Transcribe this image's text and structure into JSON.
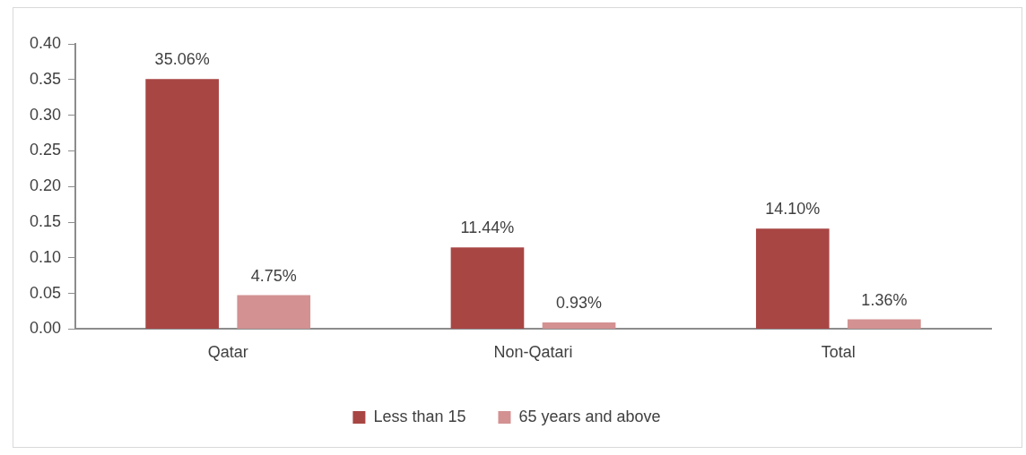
{
  "chart_data": {
    "type": "bar",
    "categories": [
      "Qatar",
      "Non-Qatari",
      "Total"
    ],
    "series": [
      {
        "name": "Less than 15",
        "color": "#a84644",
        "values": [
          0.3506,
          0.1144,
          0.141
        ],
        "value_labels": [
          "35.06%",
          "11.44%",
          "14.10%"
        ]
      },
      {
        "name": "65 years and above",
        "color": "#d39191",
        "values": [
          0.0475,
          0.0093,
          0.0136
        ],
        "value_labels": [
          "4.75%",
          "0.93%",
          "1.36%"
        ]
      }
    ],
    "ylim": [
      0,
      0.4
    ],
    "yticks": [
      {
        "value": 0,
        "label": "0.00"
      },
      {
        "value": 0.05,
        "label": "0.05"
      },
      {
        "value": 0.1,
        "label": "0.10"
      },
      {
        "value": 0.15,
        "label": "0.15"
      },
      {
        "value": 0.2,
        "label": "0.20"
      },
      {
        "value": 0.25,
        "label": "0.25"
      },
      {
        "value": 0.3,
        "label": "0.30"
      },
      {
        "value": 0.35,
        "label": "0.35"
      },
      {
        "value": 0.4,
        "label": "0.40"
      }
    ],
    "grid": false,
    "legend": "bottom"
  }
}
